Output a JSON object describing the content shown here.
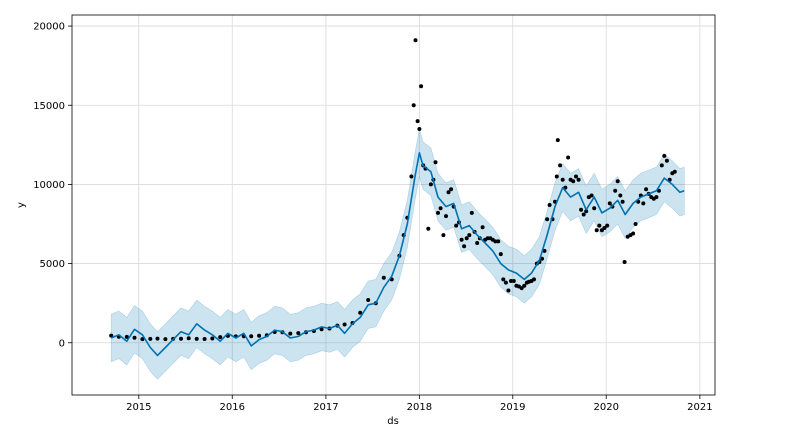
{
  "chart_data": {
    "type": "line",
    "title": "",
    "xlabel": "ds",
    "ylabel": "y",
    "x_axis": {
      "type": "date",
      "min": "2014-04-15",
      "max": "2021-03-01",
      "ticks": [
        {
          "date": "2015-01-01",
          "label": "2015"
        },
        {
          "date": "2016-01-01",
          "label": "2016"
        },
        {
          "date": "2017-01-01",
          "label": "2017"
        },
        {
          "date": "2018-01-01",
          "label": "2018"
        },
        {
          "date": "2019-01-01",
          "label": "2019"
        },
        {
          "date": "2020-01-01",
          "label": "2020"
        },
        {
          "date": "2021-01-01",
          "label": "2021"
        }
      ]
    },
    "y_axis": {
      "min": -3300,
      "max": 20700,
      "ticks": [
        {
          "value": 0,
          "label": "0"
        },
        {
          "value": 5000,
          "label": "5000"
        },
        {
          "value": 10000,
          "label": "10000"
        },
        {
          "value": 15000,
          "label": "15000"
        },
        {
          "value": 20000,
          "label": "20000"
        }
      ]
    },
    "grid": true,
    "legend": "none",
    "colors": {
      "forecast_line": "#0072b2",
      "uncertainty_band": "#0072b2",
      "observations": "#000000",
      "grid": "#d9d9d9"
    },
    "series": [
      {
        "kind": "observed-points",
        "points": [
          [
            "2014-09-15",
            450
          ],
          [
            "2014-10-15",
            380
          ],
          [
            "2014-11-15",
            370
          ],
          [
            "2014-12-15",
            320
          ],
          [
            "2015-01-15",
            230
          ],
          [
            "2015-02-15",
            240
          ],
          [
            "2015-03-15",
            260
          ],
          [
            "2015-04-15",
            230
          ],
          [
            "2015-05-15",
            240
          ],
          [
            "2015-06-15",
            250
          ],
          [
            "2015-07-15",
            280
          ],
          [
            "2015-08-15",
            240
          ],
          [
            "2015-09-15",
            235
          ],
          [
            "2015-10-15",
            270
          ],
          [
            "2015-11-15",
            360
          ],
          [
            "2015-12-15",
            430
          ],
          [
            "2016-01-15",
            400
          ],
          [
            "2016-02-15",
            410
          ],
          [
            "2016-03-15",
            415
          ],
          [
            "2016-04-15",
            440
          ],
          [
            "2016-05-15",
            470
          ],
          [
            "2016-06-15",
            680
          ],
          [
            "2016-07-15",
            660
          ],
          [
            "2016-08-15",
            580
          ],
          [
            "2016-09-15",
            610
          ],
          [
            "2016-10-15",
            660
          ],
          [
            "2016-11-15",
            740
          ],
          [
            "2016-12-15",
            850
          ],
          [
            "2017-01-15",
            900
          ],
          [
            "2017-02-15",
            1080
          ],
          [
            "2017-03-15",
            1150
          ],
          [
            "2017-04-15",
            1250
          ],
          [
            "2017-05-15",
            1900
          ],
          [
            "2017-06-15",
            2700
          ],
          [
            "2017-07-15",
            2500
          ],
          [
            "2017-08-15",
            4100
          ],
          [
            "2017-09-15",
            4000
          ],
          [
            "2017-10-15",
            5500
          ],
          [
            "2017-11-01",
            6800
          ],
          [
            "2017-11-15",
            7900
          ],
          [
            "2017-12-01",
            10500
          ],
          [
            "2017-12-10",
            15000
          ],
          [
            "2017-12-17",
            19100
          ],
          [
            "2017-12-25",
            14000
          ],
          [
            "2018-01-01",
            13500
          ],
          [
            "2018-01-08",
            16200
          ],
          [
            "2018-01-16",
            11200
          ],
          [
            "2018-01-25",
            11000
          ],
          [
            "2018-02-05",
            7200
          ],
          [
            "2018-02-15",
            10000
          ],
          [
            "2018-02-25",
            10300
          ],
          [
            "2018-03-05",
            11400
          ],
          [
            "2018-03-15",
            8200
          ],
          [
            "2018-03-25",
            8500
          ],
          [
            "2018-04-05",
            6800
          ],
          [
            "2018-04-15",
            8000
          ],
          [
            "2018-04-25",
            9500
          ],
          [
            "2018-05-05",
            9700
          ],
          [
            "2018-05-15",
            8600
          ],
          [
            "2018-05-25",
            7400
          ],
          [
            "2018-06-05",
            7600
          ],
          [
            "2018-06-15",
            6500
          ],
          [
            "2018-06-25",
            6100
          ],
          [
            "2018-07-05",
            6600
          ],
          [
            "2018-07-15",
            6800
          ],
          [
            "2018-07-25",
            8200
          ],
          [
            "2018-08-05",
            7000
          ],
          [
            "2018-08-15",
            6300
          ],
          [
            "2018-08-25",
            6600
          ],
          [
            "2018-09-05",
            7300
          ],
          [
            "2018-09-15",
            6500
          ],
          [
            "2018-09-25",
            6600
          ],
          [
            "2018-10-05",
            6600
          ],
          [
            "2018-10-15",
            6500
          ],
          [
            "2018-10-25",
            6400
          ],
          [
            "2018-11-05",
            6400
          ],
          [
            "2018-11-15",
            5600
          ],
          [
            "2018-11-25",
            4000
          ],
          [
            "2018-12-05",
            3800
          ],
          [
            "2018-12-15",
            3300
          ],
          [
            "2018-12-25",
            3900
          ],
          [
            "2019-01-05",
            3900
          ],
          [
            "2019-01-15",
            3600
          ],
          [
            "2019-01-25",
            3550
          ],
          [
            "2019-02-05",
            3450
          ],
          [
            "2019-02-15",
            3600
          ],
          [
            "2019-02-25",
            3800
          ],
          [
            "2019-03-05",
            3850
          ],
          [
            "2019-03-15",
            3900
          ],
          [
            "2019-03-25",
            4000
          ],
          [
            "2019-04-05",
            5000
          ],
          [
            "2019-04-15",
            5100
          ],
          [
            "2019-04-25",
            5300
          ],
          [
            "2019-05-05",
            5800
          ],
          [
            "2019-05-15",
            7800
          ],
          [
            "2019-05-25",
            8700
          ],
          [
            "2019-06-05",
            7800
          ],
          [
            "2019-06-15",
            8900
          ],
          [
            "2019-06-22",
            10500
          ],
          [
            "2019-06-26",
            12800
          ],
          [
            "2019-07-05",
            11200
          ],
          [
            "2019-07-15",
            10300
          ],
          [
            "2019-07-25",
            9800
          ],
          [
            "2019-08-05",
            11700
          ],
          [
            "2019-08-15",
            10300
          ],
          [
            "2019-08-25",
            10200
          ],
          [
            "2019-09-05",
            10500
          ],
          [
            "2019-09-15",
            10300
          ],
          [
            "2019-09-25",
            8400
          ],
          [
            "2019-10-05",
            8100
          ],
          [
            "2019-10-15",
            8300
          ],
          [
            "2019-10-25",
            9200
          ],
          [
            "2019-11-05",
            9300
          ],
          [
            "2019-11-15",
            8500
          ],
          [
            "2019-11-25",
            7100
          ],
          [
            "2019-12-05",
            7400
          ],
          [
            "2019-12-15",
            7100
          ],
          [
            "2019-12-25",
            7250
          ],
          [
            "2020-01-05",
            7400
          ],
          [
            "2020-01-15",
            8800
          ],
          [
            "2020-01-25",
            8600
          ],
          [
            "2020-02-05",
            9600
          ],
          [
            "2020-02-15",
            10200
          ],
          [
            "2020-02-25",
            9300
          ],
          [
            "2020-03-05",
            8900
          ],
          [
            "2020-03-13",
            5100
          ],
          [
            "2020-03-25",
            6700
          ],
          [
            "2020-04-05",
            6800
          ],
          [
            "2020-04-15",
            6900
          ],
          [
            "2020-04-25",
            7500
          ],
          [
            "2020-05-05",
            8900
          ],
          [
            "2020-05-15",
            9300
          ],
          [
            "2020-05-25",
            8800
          ],
          [
            "2020-06-05",
            9700
          ],
          [
            "2020-06-15",
            9400
          ],
          [
            "2020-06-25",
            9200
          ],
          [
            "2020-07-05",
            9100
          ],
          [
            "2020-07-15",
            9200
          ],
          [
            "2020-07-25",
            9600
          ],
          [
            "2020-08-05",
            11200
          ],
          [
            "2020-08-15",
            11800
          ],
          [
            "2020-08-25",
            11500
          ],
          [
            "2020-09-05",
            10300
          ],
          [
            "2020-09-15",
            10700
          ],
          [
            "2020-09-25",
            10800
          ]
        ]
      },
      {
        "kind": "forecast-yhat",
        "points": [
          [
            "2014-09-15",
            300
          ],
          [
            "2014-10-15",
            500
          ],
          [
            "2014-11-15",
            100
          ],
          [
            "2014-12-15",
            850
          ],
          [
            "2015-01-15",
            500
          ],
          [
            "2015-02-15",
            -300
          ],
          [
            "2015-03-15",
            -800
          ],
          [
            "2015-04-15",
            -300
          ],
          [
            "2015-05-15",
            200
          ],
          [
            "2015-06-15",
            700
          ],
          [
            "2015-07-15",
            500
          ],
          [
            "2015-08-15",
            1200
          ],
          [
            "2015-09-15",
            800
          ],
          [
            "2015-10-15",
            500
          ],
          [
            "2015-11-15",
            100
          ],
          [
            "2015-12-15",
            600
          ],
          [
            "2016-01-15",
            300
          ],
          [
            "2016-02-15",
            600
          ],
          [
            "2016-03-15",
            -200
          ],
          [
            "2016-04-15",
            200
          ],
          [
            "2016-05-15",
            400
          ],
          [
            "2016-06-15",
            800
          ],
          [
            "2016-07-15",
            700
          ],
          [
            "2016-08-15",
            300
          ],
          [
            "2016-09-15",
            400
          ],
          [
            "2016-10-15",
            700
          ],
          [
            "2016-11-15",
            800
          ],
          [
            "2016-12-15",
            1000
          ],
          [
            "2017-01-15",
            900
          ],
          [
            "2017-02-15",
            1100
          ],
          [
            "2017-03-15",
            600
          ],
          [
            "2017-04-15",
            1200
          ],
          [
            "2017-05-15",
            1600
          ],
          [
            "2017-06-15",
            2400
          ],
          [
            "2017-07-15",
            2500
          ],
          [
            "2017-08-15",
            3500
          ],
          [
            "2017-09-15",
            4200
          ],
          [
            "2017-10-15",
            5500
          ],
          [
            "2017-11-15",
            7500
          ],
          [
            "2017-12-15",
            10500
          ],
          [
            "2018-01-01",
            12000
          ],
          [
            "2018-01-15",
            11200
          ],
          [
            "2018-02-15",
            10800
          ],
          [
            "2018-03-15",
            9200
          ],
          [
            "2018-04-15",
            8600
          ],
          [
            "2018-05-15",
            8800
          ],
          [
            "2018-06-15",
            7200
          ],
          [
            "2018-07-15",
            7400
          ],
          [
            "2018-08-15",
            6800
          ],
          [
            "2018-09-15",
            6300
          ],
          [
            "2018-10-15",
            5800
          ],
          [
            "2018-11-15",
            5000
          ],
          [
            "2018-12-15",
            4600
          ],
          [
            "2019-01-15",
            4400
          ],
          [
            "2019-02-15",
            4000
          ],
          [
            "2019-03-15",
            4400
          ],
          [
            "2019-04-15",
            5200
          ],
          [
            "2019-05-15",
            6800
          ],
          [
            "2019-06-15",
            8600
          ],
          [
            "2019-07-15",
            9800
          ],
          [
            "2019-08-15",
            9200
          ],
          [
            "2019-09-15",
            9500
          ],
          [
            "2019-10-15",
            8400
          ],
          [
            "2019-11-15",
            9200
          ],
          [
            "2019-12-15",
            8200
          ],
          [
            "2020-01-15",
            8500
          ],
          [
            "2020-02-15",
            9000
          ],
          [
            "2020-03-15",
            8100
          ],
          [
            "2020-04-15",
            8800
          ],
          [
            "2020-05-15",
            9200
          ],
          [
            "2020-06-15",
            9400
          ],
          [
            "2020-07-15",
            9600
          ],
          [
            "2020-08-15",
            10400
          ],
          [
            "2020-09-15",
            10000
          ],
          [
            "2020-10-15",
            9500
          ],
          [
            "2020-11-01",
            9600
          ]
        ]
      },
      {
        "kind": "uncertainty-band",
        "band_half_width": 1500
      }
    ]
  }
}
